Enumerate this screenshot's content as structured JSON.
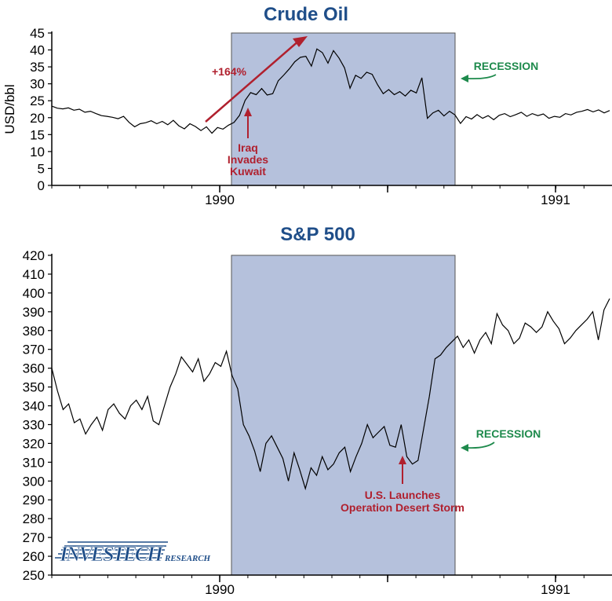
{
  "colors": {
    "title": "#1f4e89",
    "shade": "#b5c1dc",
    "shade_border": "#555555",
    "line": "#000000",
    "annotation_red": "#b0202e",
    "recession_green": "#1e8a4c"
  },
  "chart_data": [
    {
      "type": "line",
      "title": "Crude Oil",
      "ylabel": "USD/bbl",
      "ylim": [
        0,
        45
      ],
      "yticks": [
        0,
        5,
        10,
        15,
        20,
        25,
        30,
        35,
        40,
        45
      ],
      "x_labels": [
        "1990",
        "1991"
      ],
      "shaded_region": {
        "label": "RECESSION",
        "start": "1990-07",
        "end": "1991-03"
      },
      "annotations": [
        {
          "id": "gain",
          "text": "+164%"
        },
        {
          "id": "event",
          "lines": [
            "Iraq",
            "Invades",
            "Kuwait"
          ]
        },
        {
          "id": "recession",
          "text": "RECESSION"
        }
      ],
      "series": [
        {
          "values": [
            23.4,
            22.8,
            22.6,
            22.9,
            22.2,
            22.5,
            21.6,
            21.9,
            21.2,
            20.6,
            20.4,
            20.1,
            19.7,
            20.4,
            18.6,
            17.3,
            18.2,
            18.5,
            19.1,
            18.2,
            18.9,
            17.9,
            19.2,
            17.6,
            16.7,
            18.2,
            17.4,
            16.2,
            17.3,
            15.4,
            17.1,
            16.6,
            17.8,
            18.6,
            20.7,
            25.1,
            27.4,
            26.8,
            28.6,
            26.7,
            27.1,
            30.9,
            32.6,
            34.4,
            36.5,
            37.8,
            38.1,
            35.2,
            40.3,
            39.2,
            36.1,
            39.8,
            37.6,
            34.7,
            28.7,
            32.5,
            31.6,
            33.4,
            32.8,
            29.7,
            27.1,
            28.3,
            26.8,
            27.7,
            26.4,
            28.1,
            27.3,
            31.8,
            19.8,
            21.4,
            22.2,
            20.5,
            21.9,
            20.8,
            18.3,
            20.3,
            19.6,
            20.9,
            19.8,
            20.6,
            19.4,
            20.7,
            21.2,
            20.3,
            20.9,
            21.6,
            20.4,
            21.2,
            20.6,
            21.1,
            19.8,
            20.4,
            20.1,
            21.2,
            20.8,
            21.6,
            21.9,
            22.4,
            21.7,
            22.3,
            21.4,
            22.1
          ]
        }
      ]
    },
    {
      "type": "line",
      "title": "S&P 500",
      "ylim": [
        250,
        420
      ],
      "yticks": [
        250,
        260,
        270,
        280,
        290,
        300,
        310,
        320,
        330,
        340,
        350,
        360,
        370,
        380,
        390,
        400,
        410,
        420
      ],
      "x_labels": [
        "1990",
        "1991"
      ],
      "shaded_region": {
        "label": "RECESSION",
        "start": "1990-07",
        "end": "1991-03"
      },
      "annotations": [
        {
          "id": "event",
          "lines": [
            "U.S. Launches",
            "Operation Desert Storm"
          ]
        },
        {
          "id": "recession",
          "text": "RECESSION"
        }
      ],
      "series": [
        {
          "values": [
            360,
            348,
            338,
            341,
            331,
            333,
            325,
            330,
            334,
            327,
            338,
            341,
            336,
            333,
            340,
            343,
            338,
            345,
            332,
            330,
            340,
            350,
            357,
            366,
            362,
            358,
            365,
            353,
            357,
            363,
            361,
            369,
            356,
            349,
            330,
            324,
            316,
            305,
            320,
            324,
            318,
            312,
            300,
            315,
            306,
            296,
            307,
            303,
            313,
            306,
            309,
            315,
            318,
            305,
            313,
            320,
            330,
            323,
            326,
            329,
            319,
            318,
            330,
            313,
            309,
            311,
            328,
            345,
            365,
            367,
            371,
            374,
            377,
            371,
            375,
            368,
            375,
            379,
            373,
            389,
            383,
            380,
            373,
            376,
            384,
            382,
            379,
            382,
            390,
            385,
            381,
            373,
            376,
            380,
            383,
            386,
            390,
            375,
            391,
            397
          ]
        }
      ]
    }
  ],
  "logo": {
    "main": "INVESTECH",
    "sub": "RESEARCH"
  }
}
